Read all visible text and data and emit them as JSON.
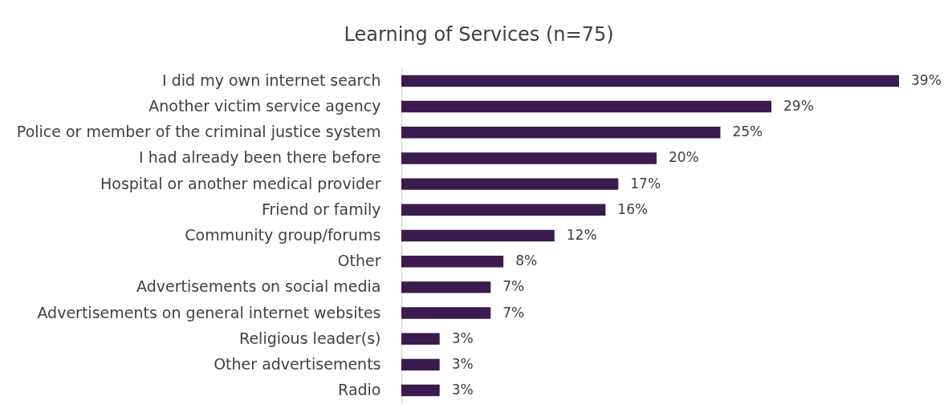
{
  "chart_data": {
    "type": "bar",
    "orientation": "horizontal",
    "title": "Learning of Services (n=75)",
    "categories": [
      "I did my own internet search",
      "Another victim service agency",
      "Police or member of the criminal justice system",
      "I had already been there before",
      "Hospital or another medical provider",
      "Friend or family",
      "Community group/forums",
      "Other",
      "Advertisements on social media",
      "Advertisements on general internet websites",
      "Religious  leader(s)",
      "Other advertisements",
      "Radio"
    ],
    "values": [
      39,
      29,
      25,
      20,
      17,
      16,
      12,
      8,
      7,
      7,
      3,
      3,
      3
    ],
    "value_labels": [
      "39%",
      "29%",
      "25%",
      "20%",
      "17%",
      "16%",
      "12%",
      "8%",
      "7%",
      "7%",
      "3%",
      "3%",
      "3%"
    ],
    "color": "#3b1a4f",
    "tick_labels": "y"
  }
}
